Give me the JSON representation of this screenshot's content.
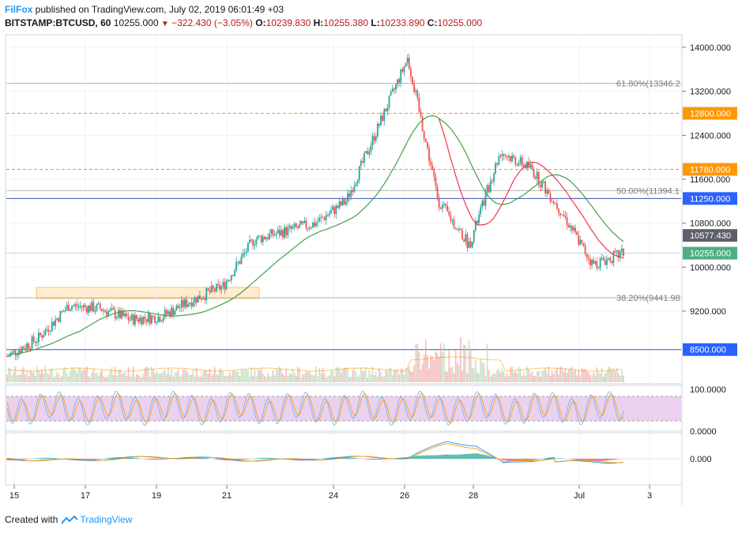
{
  "header": {
    "author": "FilFox",
    "published_text": " published on TradingView.com, July 02, 2019 06:01:49 +03",
    "symbol": "BITSTAMP:BTCUSD, 60",
    "last_price": "10255.000",
    "change": "−322.430 (−3.05%)",
    "o_label": "O:",
    "o_value": "10239.830",
    "h_label": "H:",
    "h_value": "10255.380",
    "l_label": "L:",
    "l_value": "10233.890",
    "c_label": "C:",
    "c_value": "10255.000"
  },
  "footer": {
    "created_with": "Created with",
    "brand": "TradingView"
  },
  "colors": {
    "up": "#26a69a",
    "down": "#ef5350",
    "ma_short": "#f23645",
    "ma_long": "#43a047",
    "fib": "#b2b5be",
    "orange": "#ff9800",
    "blue": "#3f51b5",
    "rsi": "#7e57c2"
  },
  "chart_data": {
    "type": "candlestick",
    "y_axis_ticks": [
      "14000.000",
      "13200.000",
      "12400.000",
      "11600.000",
      "10800.000",
      "10000.000",
      "9200.000"
    ],
    "x_axis_ticks": [
      "15",
      "17",
      "19",
      "21",
      "24",
      "26",
      "28",
      "Jul",
      "3"
    ],
    "ylim": [
      8000,
      14300
    ],
    "price_labels": [
      {
        "value": 12800,
        "text": "12800.000",
        "color": "#ff9800"
      },
      {
        "value": 11780,
        "text": "11780.000",
        "color": "#ff9800"
      },
      {
        "value": 11250,
        "text": "11250.000",
        "color": "#2962ff"
      },
      {
        "value": 10577.43,
        "text": "10577.430",
        "color": "#5d606b"
      },
      {
        "value": 10255,
        "text": "10255.000",
        "color": "#4caf80"
      },
      {
        "value": 8500,
        "text": "8500.000",
        "color": "#2962ff"
      }
    ],
    "fib_levels": [
      {
        "value": 13346.2,
        "text": "61.80%(13346.2"
      },
      {
        "value": 11394.1,
        "text": "50.00%(11394.1"
      },
      {
        "value": 9441.98,
        "text": "38.20%(9441.98"
      }
    ],
    "key_points": [
      {
        "t": "Jun 14",
        "close": 8380
      },
      {
        "t": "Jun 15",
        "close": 8700
      },
      {
        "t": "Jun 16",
        "close": 9300
      },
      {
        "t": "Jun 17",
        "close": 9250
      },
      {
        "t": "Jun 18",
        "close": 9050
      },
      {
        "t": "Jun 19",
        "close": 9100
      },
      {
        "t": "Jun 20",
        "close": 9400
      },
      {
        "t": "Jun 21",
        "close": 9650
      },
      {
        "t": "Jun 22",
        "close": 10500
      },
      {
        "t": "Jun 23",
        "close": 10650
      },
      {
        "t": "Jun 24",
        "close": 10800
      },
      {
        "t": "Jun 25",
        "close": 11200
      },
      {
        "t": "Jun 26",
        "close": 12500
      },
      {
        "t": "Jun 26 peak",
        "close": 13800
      },
      {
        "t": "Jun 27",
        "close": 11200
      },
      {
        "t": "Jun 28",
        "close": 10400
      },
      {
        "t": "Jun 29",
        "close": 12100
      },
      {
        "t": "Jun 30",
        "close": 11800
      },
      {
        "t": "Jul 1",
        "close": 11000
      },
      {
        "t": "Jul 1 low",
        "close": 10050
      },
      {
        "t": "Jul 2",
        "close": 10255
      }
    ],
    "rsi_ticks": [
      "100.0000",
      "0.0000"
    ],
    "macd_ticks": [
      "0.000"
    ]
  }
}
